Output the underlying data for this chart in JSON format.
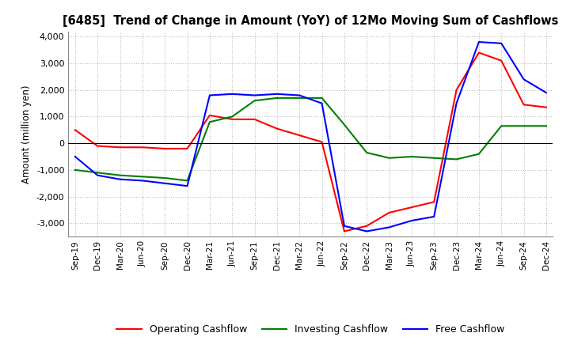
{
  "title": "[6485]  Trend of Change in Amount (YoY) of 12Mo Moving Sum of Cashflows",
  "ylabel": "Amount (million yen)",
  "ylim": [
    -3500,
    4200
  ],
  "yticks": [
    -3000,
    -2000,
    -1000,
    0,
    1000,
    2000,
    3000,
    4000
  ],
  "background_color": "#ffffff",
  "grid_color": "#bbbbbb",
  "x_labels": [
    "Sep-19",
    "Dec-19",
    "Mar-20",
    "Jun-20",
    "Sep-20",
    "Dec-20",
    "Mar-21",
    "Jun-21",
    "Sep-21",
    "Dec-21",
    "Mar-22",
    "Jun-22",
    "Sep-22",
    "Dec-22",
    "Mar-23",
    "Jun-23",
    "Sep-23",
    "Dec-23",
    "Mar-24",
    "Jun-24",
    "Sep-24",
    "Dec-24"
  ],
  "operating": [
    500,
    -100,
    -150,
    -150,
    -200,
    -200,
    1050,
    900,
    900,
    550,
    300,
    50,
    -3300,
    -3100,
    -2600,
    -2400,
    -2200,
    2000,
    3400,
    3100,
    1450,
    1350
  ],
  "investing": [
    -1000,
    -1100,
    -1200,
    -1250,
    -1300,
    -1400,
    800,
    1000,
    1600,
    1700,
    1700,
    1700,
    700,
    -350,
    -550,
    -500,
    -550,
    -600,
    -400,
    650,
    650,
    650
  ],
  "free": [
    -500,
    -1200,
    -1350,
    -1400,
    -1500,
    -1600,
    1800,
    1850,
    1800,
    1850,
    1800,
    1500,
    -3100,
    -3300,
    -3150,
    -2900,
    -2750,
    1500,
    3800,
    3750,
    2400,
    1900
  ],
  "operating_color": "#ff0000",
  "investing_color": "#008000",
  "free_color": "#0000ff",
  "line_width": 1.5
}
